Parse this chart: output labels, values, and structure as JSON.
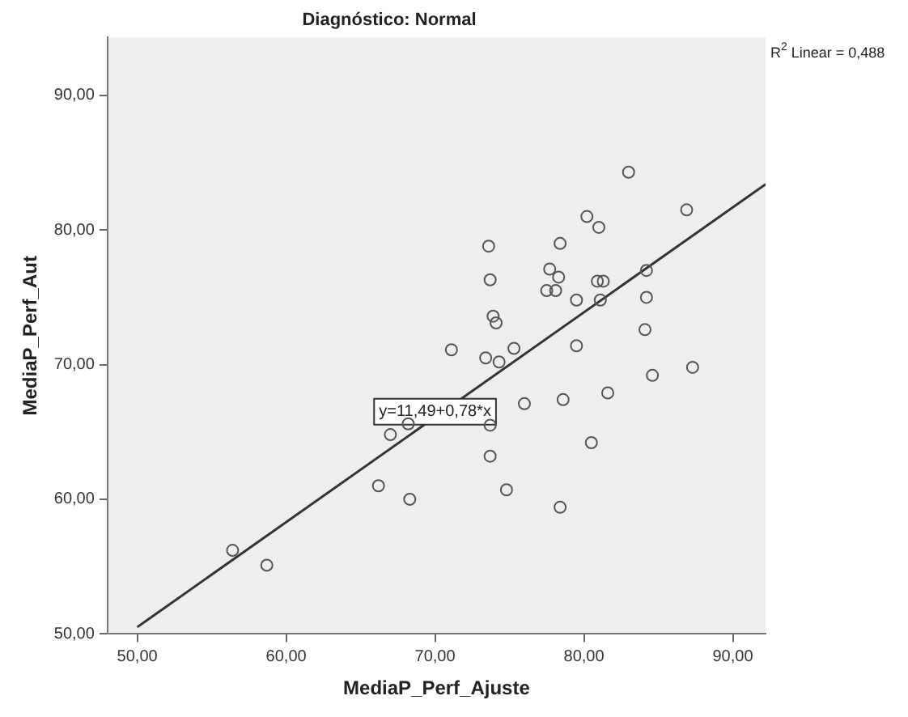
{
  "chart_data": {
    "type": "scatter",
    "title": "Diagnóstico: Normal",
    "xlabel": "MediaP_Perf_Ajuste",
    "ylabel": "MediaP_Perf_Aut",
    "series": [
      {
        "color": "#555555",
        "x": [
          56.4,
          58.7,
          66.2,
          68.3,
          67.0,
          68.2,
          71.1,
          73.6,
          73.7,
          73.9,
          74.1,
          73.4,
          74.3,
          75.3,
          73.7,
          73.7,
          74.8,
          76.0,
          78.4,
          77.7,
          78.3,
          77.5,
          78.1,
          78.6,
          78.4,
          83.0,
          86.9,
          80.2,
          81.0,
          79.5,
          80.9,
          81.3,
          84.2,
          81.1,
          84.2,
          84.1,
          79.5,
          87.3,
          84.6,
          81.6,
          80.5
        ],
        "values": [
          56.2,
          55.1,
          61.0,
          60.0,
          64.8,
          65.6,
          71.1,
          78.8,
          76.3,
          73.6,
          73.1,
          70.5,
          70.2,
          71.2,
          65.5,
          63.2,
          60.7,
          67.1,
          79.0,
          77.1,
          76.5,
          75.5,
          75.5,
          67.4,
          59.4,
          84.3,
          81.5,
          81.0,
          80.2,
          74.8,
          76.2,
          76.2,
          77.0,
          74.8,
          75.0,
          72.6,
          71.4,
          69.8,
          69.2,
          67.9,
          64.2
        ]
      },
      {
        "type": "line",
        "marker": "none",
        "color": "#333333",
        "x": [
          50,
          92.2
        ],
        "values": [
          50.5,
          83.4
        ]
      }
    ],
    "annotations": [
      {
        "text": "y=11,49+0,78*x",
        "x": 70,
        "y": 66.5
      },
      "R$^{2}$ Linear = 0,488"
    ],
    "xlim": [
      48,
      92.2
    ],
    "ylim": [
      50,
      94.3
    ],
    "xticks": [
      {
        "value": 50,
        "label": "50,00"
      },
      {
        "value": 60,
        "label": "60,00"
      },
      {
        "value": 70,
        "label": "70,00"
      },
      {
        "value": 80,
        "label": "80,00"
      },
      {
        "value": 90,
        "label": "90,00"
      }
    ],
    "yticks": [
      {
        "value": 50,
        "label": "50,00"
      },
      {
        "value": 60,
        "label": "60,00"
      },
      {
        "value": 70,
        "label": "70,00"
      },
      {
        "value": 80,
        "label": "80,00"
      },
      {
        "value": 90,
        "label": "90,00"
      }
    ],
    "grid": false,
    "legend": false,
    "marker": "circle"
  }
}
